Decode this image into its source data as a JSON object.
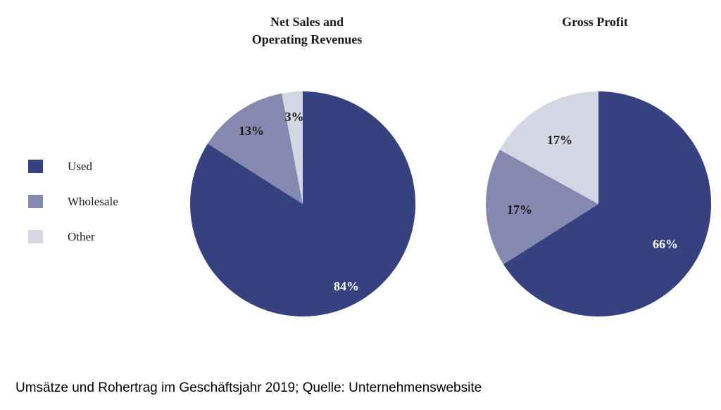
{
  "chart_data": [
    {
      "type": "pie",
      "title_lines": [
        "Net Sales and",
        "Operating Revenues"
      ],
      "slices": [
        {
          "category": "Used",
          "value": 84,
          "label": "84%"
        },
        {
          "category": "Wholesale",
          "value": 13,
          "label": "13%"
        },
        {
          "category": "Other",
          "value": 3,
          "label": "3%"
        }
      ]
    },
    {
      "type": "pie",
      "title_lines": [
        "Gross Profit"
      ],
      "slices": [
        {
          "category": "Used",
          "value": 66,
          "label": "66%"
        },
        {
          "category": "Wholesale",
          "value": 17,
          "label": "17%"
        },
        {
          "category": "Other",
          "value": 17,
          "label": "17%"
        }
      ]
    }
  ],
  "legend": [
    {
      "label": "Used",
      "color": "#36427f"
    },
    {
      "label": "Wholesale",
      "color": "#8589b0"
    },
    {
      "label": "Other",
      "color": "#d5d6e4"
    }
  ],
  "label_colors": {
    "Used": "#ffffff",
    "Wholesale": "#1a1a1a",
    "Other": "#1a1a1a"
  },
  "caption": "Umsätze und Rohertrag im Geschäftsjahr 2019; Quelle: Unternehmenswebsite"
}
